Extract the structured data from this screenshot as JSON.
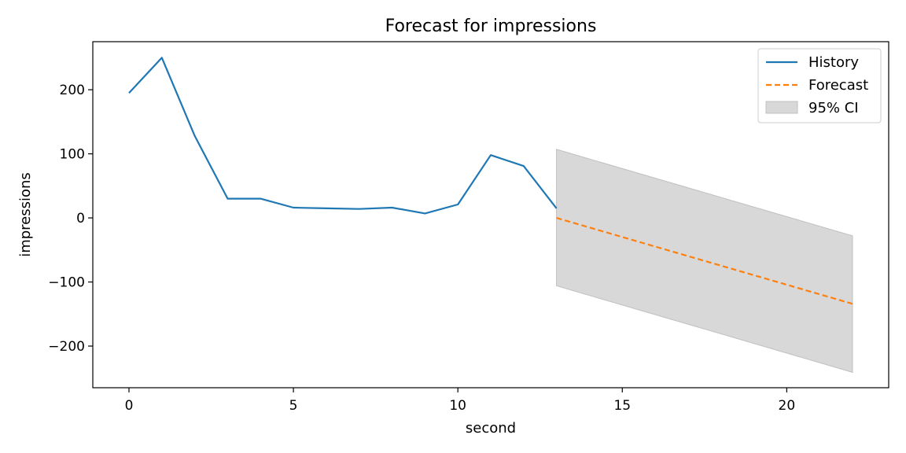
{
  "chart_data": {
    "type": "line",
    "title": "Forecast for impressions",
    "xlabel": "second",
    "ylabel": "impressions",
    "xlim": [
      -1.1,
      23.1
    ],
    "ylim": [
      -265,
      275
    ],
    "xticks": [
      0,
      5,
      10,
      15,
      20
    ],
    "yticks": [
      -200,
      -100,
      0,
      100,
      200
    ],
    "grid": false,
    "legend_position": "top-right",
    "series": [
      {
        "name": "History",
        "style": "solid",
        "color": "#1f77b4",
        "x": [
          0,
          1,
          2,
          3,
          4,
          5,
          6,
          7,
          8,
          9,
          10,
          11,
          12,
          13
        ],
        "values": [
          195,
          250,
          128,
          30,
          30,
          16,
          15,
          14,
          16,
          7,
          21,
          98,
          81,
          15
        ]
      },
      {
        "name": "Forecast",
        "style": "dashed",
        "color": "#ff7f0e",
        "x": [
          13,
          22
        ],
        "values": [
          0,
          -134
        ]
      }
    ],
    "band": {
      "name": "95% CI",
      "color": "#d8d8d8",
      "edge_color": "#c0c0c0",
      "x": [
        13,
        22
      ],
      "upper": [
        107,
        -28
      ],
      "lower": [
        -106,
        -241
      ]
    }
  }
}
